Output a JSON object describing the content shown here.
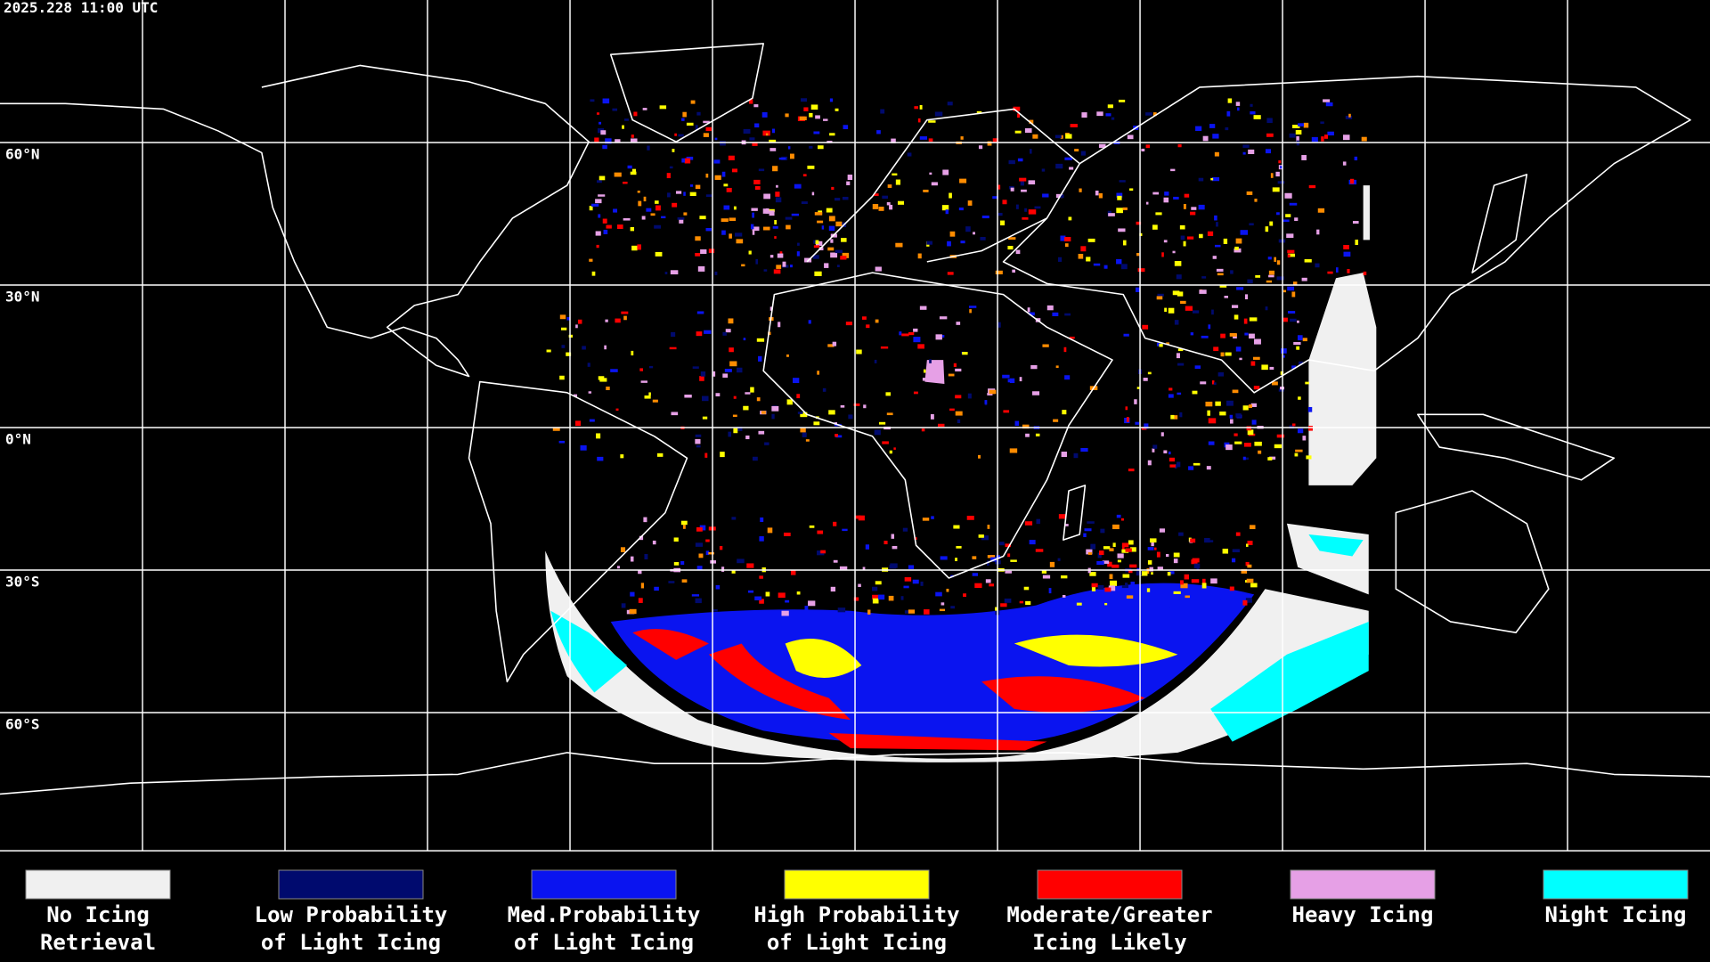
{
  "header": {
    "timestamp": "2025.228 11:00 UTC"
  },
  "map": {
    "latitude_labels": [
      "60°N",
      "30°N",
      "0°N",
      "30°S",
      "60°S"
    ]
  },
  "legend": {
    "items": [
      {
        "lines": [
          "No Icing",
          "Retrieval"
        ],
        "color": "#f0f0f0"
      },
      {
        "lines": [
          "Low Probability",
          "of Light Icing"
        ],
        "color": "#000a6e"
      },
      {
        "lines": [
          "Med.Probability",
          "of Light Icing"
        ],
        "color": "#0a14f0"
      },
      {
        "lines": [
          "High Probability",
          "of Light Icing"
        ],
        "color": "#ffff00"
      },
      {
        "lines": [
          "Moderate/Greater",
          "Icing Likely"
        ],
        "color": "#ff0000"
      },
      {
        "lines": [
          "Heavy Icing"
        ],
        "color": "#e6a0e6"
      },
      {
        "lines": [
          "Night Icing"
        ],
        "color": "#00ffff"
      }
    ]
  }
}
